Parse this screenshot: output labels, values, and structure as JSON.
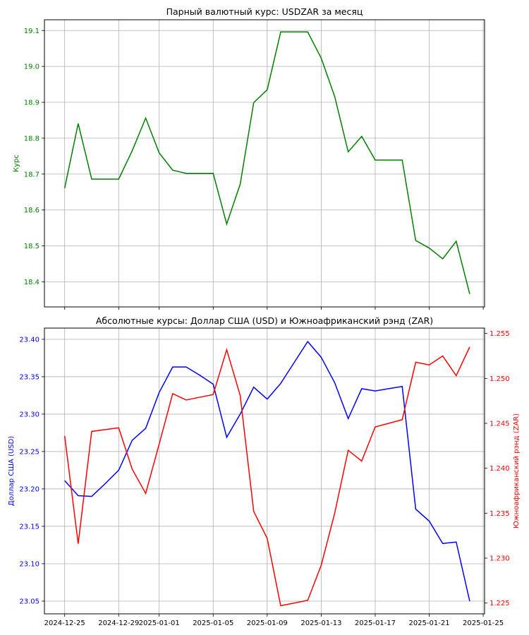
{
  "colors": {
    "usdzar": "#008000",
    "usd": "#0000ff",
    "zar": "#ff0000",
    "grid": "#b0b0b0",
    "axis": "#000000"
  },
  "chart_data": [
    {
      "type": "line",
      "title": "Парный валютный курс: USDZAR за месяц",
      "xlabel": "",
      "ylabel": "Курс",
      "ylim": [
        18.33,
        19.13
      ],
      "yticks": [
        "18.4",
        "18.5",
        "18.6",
        "18.7",
        "18.8",
        "18.9",
        "19.0",
        "19.1"
      ],
      "grid": true,
      "x": [
        "2024-12-25",
        "2024-12-26",
        "2024-12-27",
        "2024-12-28",
        "2024-12-29",
        "2024-12-30",
        "2024-12-31",
        "2025-01-01",
        "2025-01-02",
        "2025-01-03",
        "2025-01-04",
        "2025-01-05",
        "2025-01-06",
        "2025-01-07",
        "2025-01-08",
        "2025-01-09",
        "2025-01-10",
        "2025-01-11",
        "2025-01-12",
        "2025-01-13",
        "2025-01-14",
        "2025-01-15",
        "2025-01-16",
        "2025-01-17",
        "2025-01-18",
        "2025-01-19",
        "2025-01-20",
        "2025-01-21",
        "2025-01-22",
        "2025-01-23",
        "2025-01-24"
      ],
      "series": [
        {
          "axis": "left",
          "values": [
            18.661,
            18.841,
            18.686,
            18.686,
            18.686,
            18.765,
            18.856,
            18.759,
            18.711,
            18.702,
            18.702,
            18.702,
            18.561,
            18.672,
            18.899,
            18.935,
            19.096,
            19.096,
            19.096,
            19.023,
            18.916,
            18.762,
            18.805,
            18.739,
            18.739,
            18.739,
            18.515,
            18.494,
            18.464,
            18.513,
            18.366
          ]
        }
      ]
    },
    {
      "type": "line",
      "title": "Абсолютные курсы: Доллар США (USD) и Южноафриканский рэнд (ZAR)",
      "xlabel": "",
      "ylabel": "Доллар США (USD)",
      "ylabel_right": "Южноафриканский рэнд (ZAR)",
      "ylim": [
        23.033,
        23.415
      ],
      "ylim_right": [
        1.2238,
        1.2556
      ],
      "yticks": [
        "23.05",
        "23.10",
        "23.15",
        "23.20",
        "23.25",
        "23.30",
        "23.35",
        "23.40"
      ],
      "yticks_right": [
        "1.225",
        "1.230",
        "1.235",
        "1.240",
        "1.245",
        "1.250",
        "1.255"
      ],
      "xticks": [
        "2024-12-25",
        "2024-12-29",
        "2025-01-01",
        "2025-01-05",
        "2025-01-09",
        "2025-01-13",
        "2025-01-17",
        "2025-01-21",
        "2025-01-25"
      ],
      "grid": true,
      "x": [
        "2024-12-25",
        "2024-12-26",
        "2024-12-27",
        "2024-12-28",
        "2024-12-29",
        "2024-12-30",
        "2024-12-31",
        "2025-01-01",
        "2025-01-02",
        "2025-01-03",
        "2025-01-04",
        "2025-01-05",
        "2025-01-06",
        "2025-01-07",
        "2025-01-08",
        "2025-01-09",
        "2025-01-10",
        "2025-01-11",
        "2025-01-12",
        "2025-01-13",
        "2025-01-14",
        "2025-01-15",
        "2025-01-16",
        "2025-01-17",
        "2025-01-18",
        "2025-01-19",
        "2025-01-20",
        "2025-01-21",
        "2025-01-22",
        "2025-01-23",
        "2025-01-24"
      ],
      "series": [
        {
          "axis": "left",
          "values": [
            23.211,
            23.191,
            23.19,
            23.207,
            23.225,
            23.265,
            23.281,
            23.329,
            23.363,
            23.363,
            23.352,
            23.34,
            23.269,
            23.3,
            23.336,
            23.32,
            23.341,
            23.369,
            23.397,
            23.376,
            23.342,
            23.294,
            23.334,
            23.331,
            23.334,
            23.337,
            23.173,
            23.157,
            23.127,
            23.129,
            23.05
          ]
        },
        {
          "axis": "right",
          "values": [
            1.2436,
            1.2316,
            1.2441,
            1.2443,
            1.2445,
            1.2399,
            1.2372,
            1.2427,
            1.2483,
            1.2476,
            1.2479,
            1.2482,
            1.2532,
            1.2481,
            1.2352,
            1.2322,
            1.2247,
            1.225,
            1.2253,
            1.2292,
            1.235,
            1.242,
            1.2408,
            1.2446,
            1.245,
            1.2454,
            1.2518,
            1.2515,
            1.2525,
            1.2503,
            1.2535
          ]
        }
      ]
    }
  ]
}
